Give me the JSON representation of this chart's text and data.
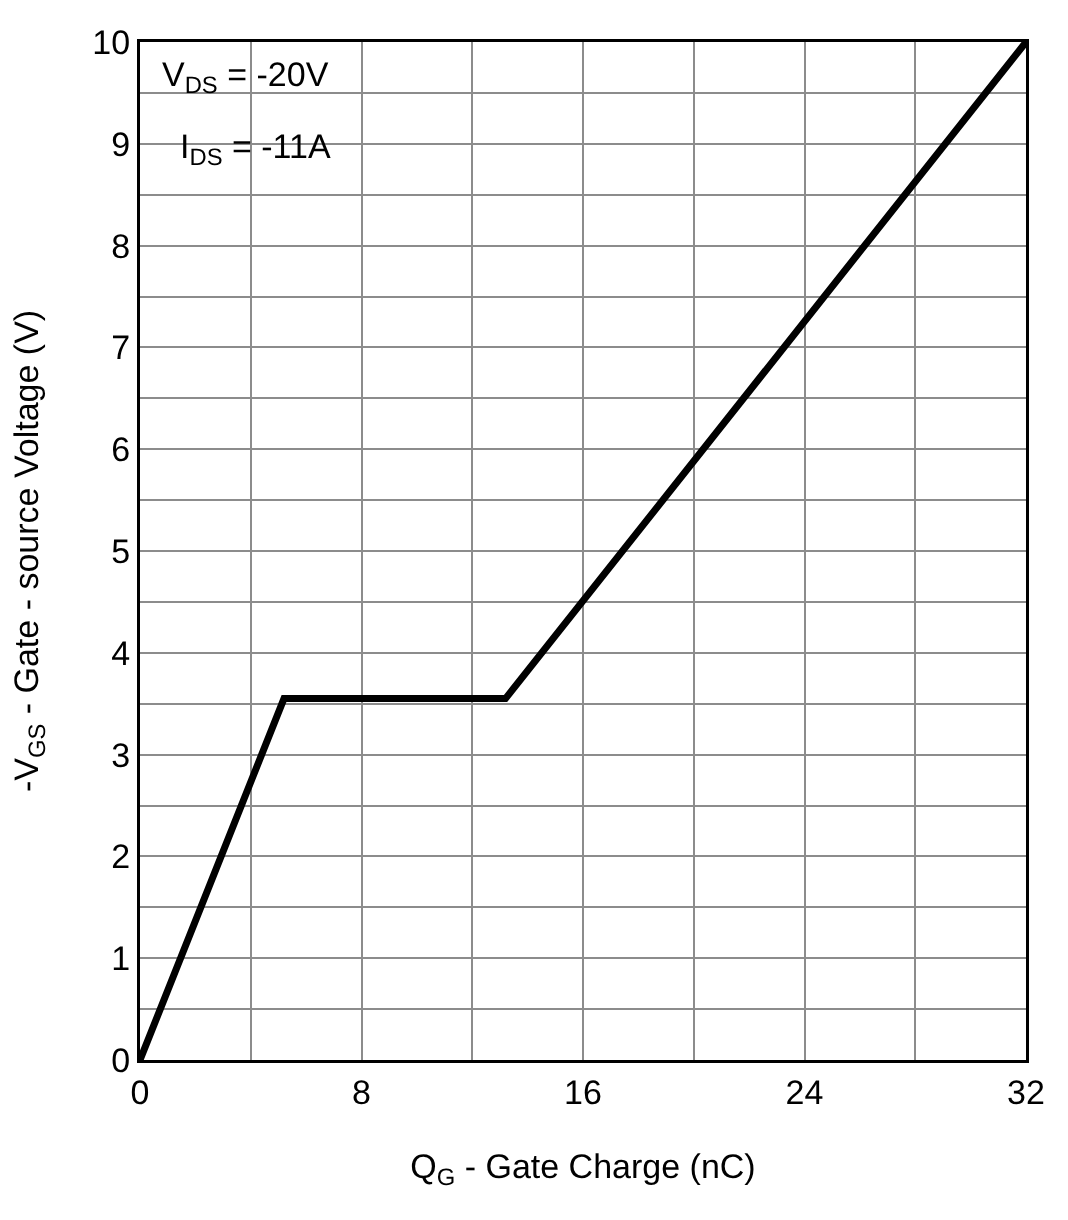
{
  "chart_data": {
    "type": "line",
    "xlabel": "Q$_{G}$ - Gate Charge (nC)",
    "ylabel": "-V$_{GS}$ - Gate - source Voltage (V)",
    "annotations": [
      "V$_{DS}$ = -20V",
      "I$_{DS}$ = -11A"
    ],
    "x": [
      0,
      5.2,
      13.2,
      32
    ],
    "series": [
      {
        "color": "#000000",
        "values": [
          0,
          3.55,
          3.55,
          10
        ]
      }
    ],
    "xlim": [
      0,
      32
    ],
    "ylim": [
      0,
      10
    ],
    "xticks": [
      0,
      {
        "value": 4,
        "label": null
      },
      8,
      {
        "value": 12,
        "label": null
      },
      16,
      {
        "value": 20,
        "label": null
      },
      24,
      {
        "value": 28,
        "label": null
      },
      32
    ],
    "yticks": [
      0,
      {
        "value": 0.5,
        "label": null
      },
      1,
      {
        "value": 1.5,
        "label": null
      },
      2,
      {
        "value": 2.5,
        "label": null
      },
      3,
      {
        "value": 3.5,
        "label": null
      },
      4,
      {
        "value": 4.5,
        "label": null
      },
      5,
      {
        "value": 5.5,
        "label": null
      },
      6,
      {
        "value": 6.5,
        "label": null
      },
      7,
      {
        "value": 7.5,
        "label": null
      },
      8,
      {
        "value": 8.5,
        "label": null
      },
      9,
      {
        "value": 9.5,
        "label": null
      },
      10
    ],
    "grid": true,
    "marker": "none",
    "line_style": "solid"
  }
}
